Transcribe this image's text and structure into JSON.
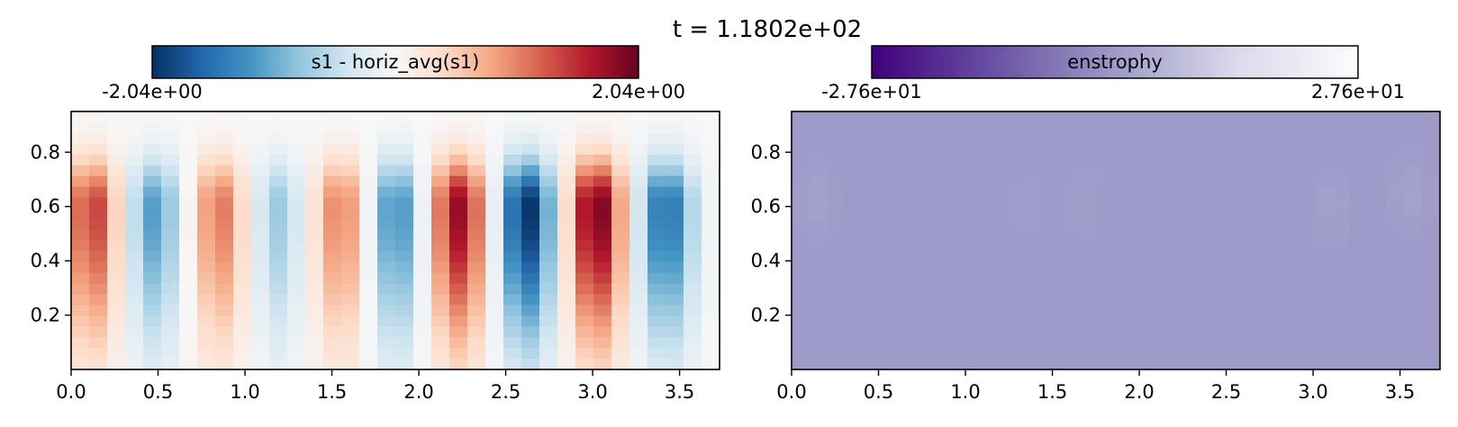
{
  "title": "t = 1.1802e+02",
  "chart_data": [
    {
      "type": "heatmap",
      "panel": "left",
      "colorbar": {
        "label": "s1 - horiz_avg(s1)",
        "colormap": "RdBu_r",
        "min_label": "-2.04e+00",
        "max_label": "2.04e+00",
        "vmin": -2.04,
        "vmax": 2.04
      },
      "x_ticks": [
        "0.0",
        "0.5",
        "1.0",
        "1.5",
        "2.0",
        "2.5",
        "3.0",
        "3.5"
      ],
      "x_tick_values": [
        0.0,
        0.5,
        1.0,
        1.5,
        2.0,
        2.5,
        3.0,
        3.5
      ],
      "y_ticks": [
        "0.2",
        "0.4",
        "0.6",
        "0.8"
      ],
      "y_tick_values": [
        0.2,
        0.4,
        0.6,
        0.8
      ],
      "xlim": [
        0.0,
        3.73
      ],
      "ylim": [
        0.0,
        0.95
      ],
      "grid": {
        "nx": 36,
        "ny": 24
      },
      "field": {
        "kind": "vertical_cells",
        "y_center": 0.6,
        "y_sigma": 0.12,
        "y_tail": 0.35,
        "cells": [
          {
            "x": 0.12,
            "amp": 1.45,
            "width": 0.1
          },
          {
            "x": 0.48,
            "amp": -1.15,
            "width": 0.1
          },
          {
            "x": 0.85,
            "amp": 1.1,
            "width": 0.1
          },
          {
            "x": 1.19,
            "amp": -0.75,
            "width": 0.09
          },
          {
            "x": 1.55,
            "amp": 1.05,
            "width": 0.1
          },
          {
            "x": 1.87,
            "amp": -1.3,
            "width": 0.1
          },
          {
            "x": 2.23,
            "amp": 1.8,
            "width": 0.11
          },
          {
            "x": 2.62,
            "amp": -2.04,
            "width": 0.11
          },
          {
            "x": 3.02,
            "amp": 2.0,
            "width": 0.11
          },
          {
            "x": 3.42,
            "amp": -1.55,
            "width": 0.11
          }
        ]
      }
    },
    {
      "type": "heatmap",
      "panel": "right",
      "colorbar": {
        "label": "enstrophy",
        "colormap": "Purples_r",
        "min_label": "-2.76e+01",
        "max_label": "2.76e+01",
        "vmin": -27.6,
        "vmax": 27.6
      },
      "x_ticks": [
        "0.0",
        "0.5",
        "1.0",
        "1.5",
        "2.0",
        "2.5",
        "3.0",
        "3.5"
      ],
      "x_tick_values": [
        0.0,
        0.5,
        1.0,
        1.5,
        2.0,
        2.5,
        3.0,
        3.5
      ],
      "y_ticks": [
        "0.2",
        "0.4",
        "0.6",
        "0.8"
      ],
      "y_tick_values": [
        0.2,
        0.4,
        0.6,
        0.8
      ],
      "xlim": [
        0.0,
        3.73
      ],
      "ylim": [
        0.0,
        0.95
      ],
      "grid": {
        "nx": 36,
        "ny": 24
      },
      "field": {
        "kind": "near_uniform",
        "base": 0.0,
        "blobs": [
          {
            "x": 0.15,
            "y": 0.62,
            "amp": 1.4,
            "width": 0.08
          },
          {
            "x": 1.35,
            "y": 0.6,
            "amp": 0.6,
            "width": 0.08
          },
          {
            "x": 1.7,
            "y": 0.6,
            "amp": 0.8,
            "width": 0.08
          },
          {
            "x": 3.1,
            "y": 0.6,
            "amp": 1.3,
            "width": 0.08
          },
          {
            "x": 3.55,
            "y": 0.65,
            "amp": 1.6,
            "width": 0.08
          }
        ]
      }
    }
  ]
}
